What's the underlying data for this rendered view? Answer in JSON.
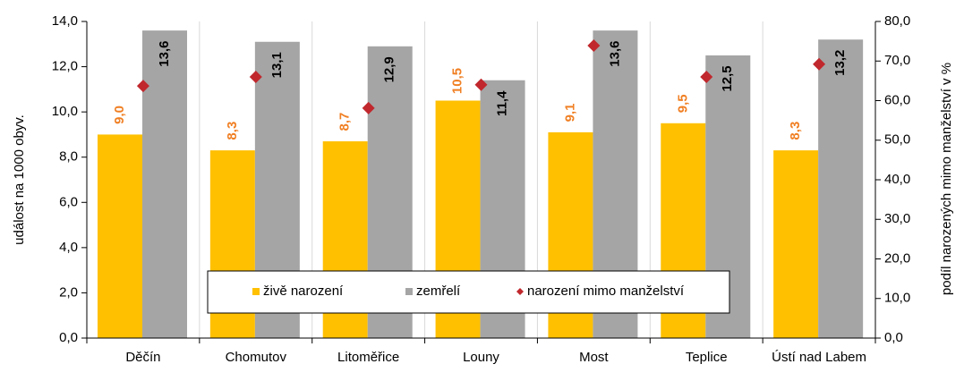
{
  "chart_data": {
    "type": "bar",
    "categories": [
      "Děčín",
      "Chomutov",
      "Litoměřice",
      "Louny",
      "Most",
      "Teplice",
      "Ústí nad Labem"
    ],
    "series": [
      {
        "name": "živě narození",
        "color": "#FFC000",
        "label_color": "#F07F23",
        "values": [
          9.0,
          8.3,
          8.7,
          10.5,
          9.1,
          9.5,
          8.3
        ],
        "value_labels": [
          "9,0",
          "8,3",
          "8,7",
          "10,5",
          "9,1",
          "9,5",
          "8,3"
        ]
      },
      {
        "name": "zemřelí",
        "color": "#A5A5A5",
        "label_color": "#000000",
        "values": [
          13.6,
          13.1,
          12.9,
          11.4,
          13.6,
          12.5,
          13.2
        ],
        "value_labels": [
          "13,6",
          "13,1",
          "12,9",
          "11,4",
          "13,6",
          "12,5",
          "13,2"
        ]
      },
      {
        "name": "narození mimo manželství",
        "type": "scatter",
        "axis": "y2",
        "color": "#C0282D",
        "values": [
          63.7,
          66.0,
          58.1,
          64.0,
          73.9,
          66.0,
          69.2
        ]
      }
    ],
    "ylabel": "událost na 1000 obyv.",
    "y2label": "podíl narozených mimo manželství v %",
    "ylim": [
      0,
      14
    ],
    "yticks": [
      {
        "value": 0,
        "label": "0,0"
      },
      {
        "value": 2,
        "label": "2,0"
      },
      {
        "value": 4,
        "label": "4,0"
      },
      {
        "value": 6,
        "label": "6,0"
      },
      {
        "value": 8,
        "label": "8,0"
      },
      {
        "value": 10,
        "label": "10,0"
      },
      {
        "value": 12,
        "label": "12,0"
      },
      {
        "value": 14,
        "label": "14,0"
      }
    ],
    "y2lim": [
      0,
      80
    ],
    "y2ticks": [
      {
        "value": 0,
        "label": "0,0"
      },
      {
        "value": 10,
        "label": "10,0"
      },
      {
        "value": 20,
        "label": "20,0"
      },
      {
        "value": 30,
        "label": "30,0"
      },
      {
        "value": 40,
        "label": "40,0"
      },
      {
        "value": 50,
        "label": "50,0"
      },
      {
        "value": 60,
        "label": "60,0"
      },
      {
        "value": 70,
        "label": "70,0"
      },
      {
        "value": 80,
        "label": "80,0"
      }
    ],
    "legend": "bottom-center"
  }
}
